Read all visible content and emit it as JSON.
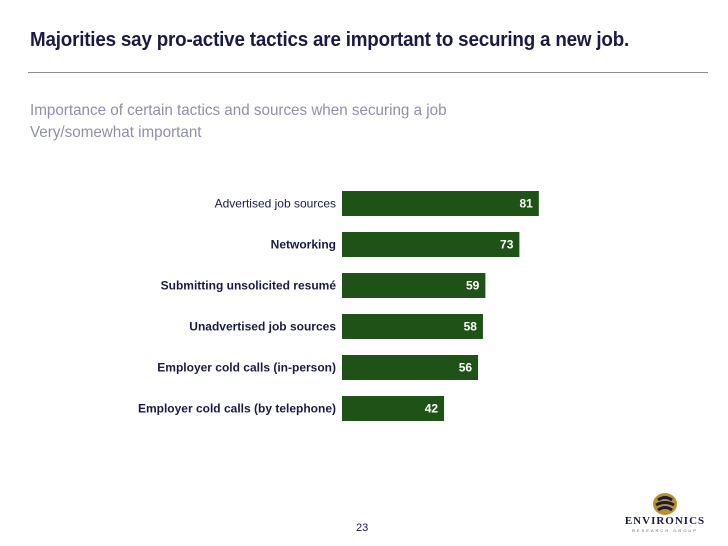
{
  "header": {
    "title": "Majorities say pro-active tactics are important to securing a new job.",
    "subtitle_line1": "Importance of certain tactics and sources when securing a job",
    "subtitle_line2": "Very/somewhat important"
  },
  "footer": {
    "page_number": "23",
    "logo_text": "ENVIRONICS",
    "logo_subtext": "RESEARCH GROUP"
  },
  "colors": {
    "bar": "#1f5216",
    "title": "#1a1a46",
    "subtitle": "#8f8fa8"
  },
  "chart_data": {
    "type": "bar",
    "orientation": "horizontal",
    "categories": [
      "Advertised job sources",
      "Networking",
      "Submitting unsolicited resumé",
      "Unadvertised job sources",
      "Employer cold calls (in-person)",
      "Employer cold calls (by telephone)"
    ],
    "category_bold": [
      false,
      true,
      true,
      true,
      true,
      true
    ],
    "values": [
      81,
      73,
      59,
      58,
      56,
      42
    ],
    "xlim": [
      0,
      100
    ],
    "grid": false,
    "legend": "none"
  }
}
